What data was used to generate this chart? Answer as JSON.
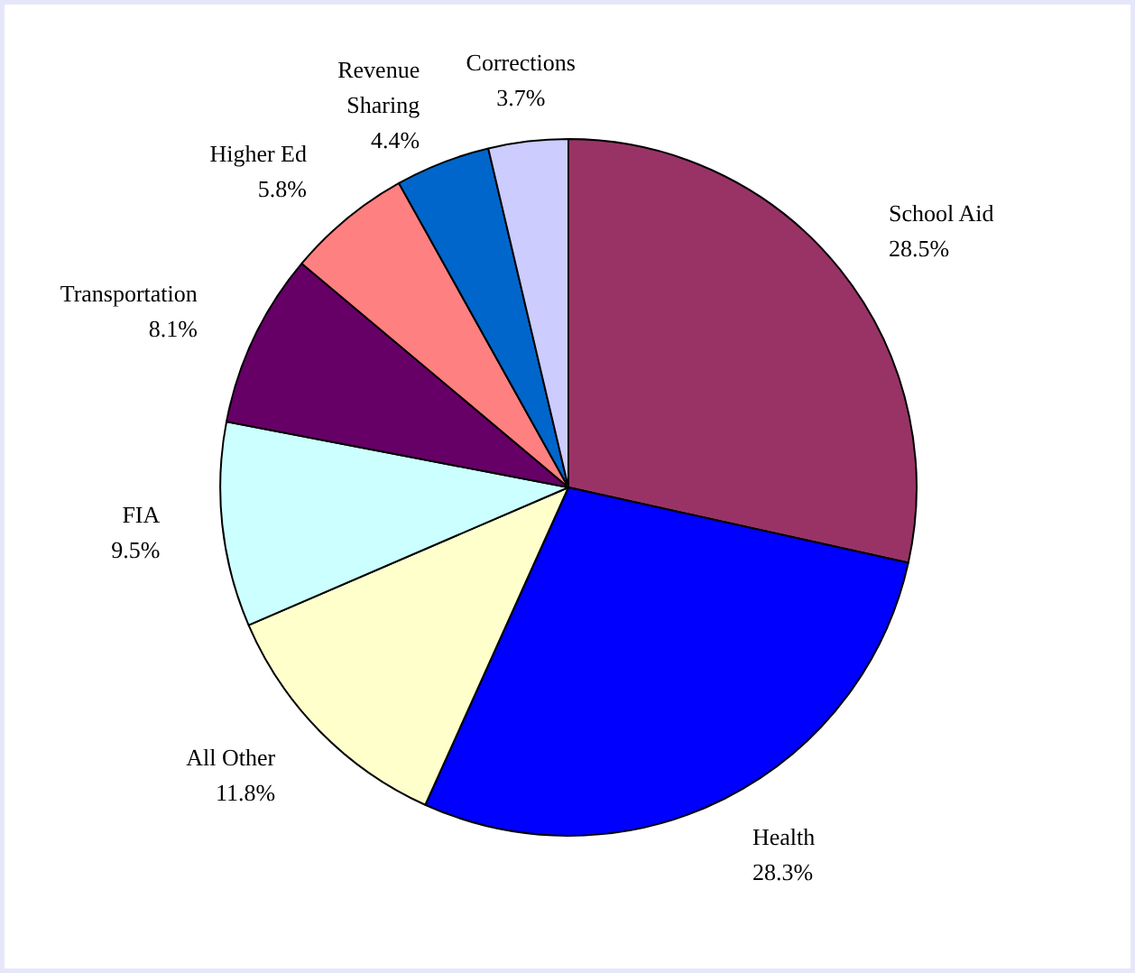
{
  "chart_data": {
    "type": "pie",
    "categories": [
      "School Aid",
      "Health",
      "All Other",
      "FIA",
      "Transportation",
      "Higher Ed",
      "Revenue Sharing",
      "Corrections"
    ],
    "values": [
      28.5,
      28.3,
      11.8,
      9.5,
      8.1,
      5.8,
      4.4,
      3.7
    ],
    "value_labels": [
      "28.5%",
      "28.3%",
      "11.8%",
      "9.5%",
      "8.1%",
      "5.8%",
      "4.4%",
      "3.7%"
    ],
    "colors": [
      "#993366",
      "#0000ff",
      "#ffffcc",
      "#ccffff",
      "#660066",
      "#ff8080",
      "#0066cc",
      "#ccccff"
    ]
  }
}
